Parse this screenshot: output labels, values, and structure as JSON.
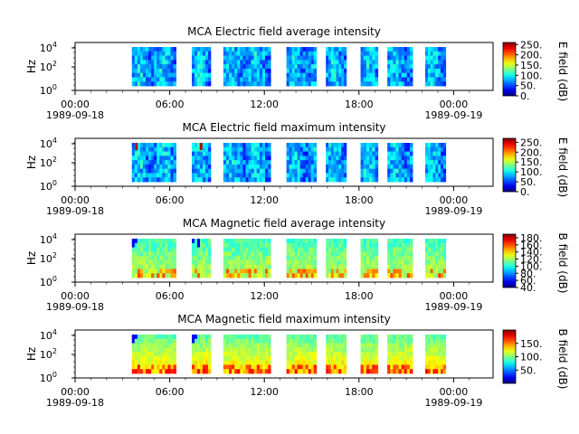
{
  "chart_data": [
    {
      "type": "heatmap",
      "title": "MCA  Electric field average intensity",
      "ylabel": "Hz",
      "yscale": "log",
      "yticks": [
        "10^0",
        "10^2",
        "10^4"
      ],
      "xticks": [
        "00:00",
        "06:00",
        "12:00",
        "18:00",
        "00:00"
      ],
      "xdates": [
        "1989-09-18",
        "1989-09-19"
      ],
      "colorbar_label": "E field (dB)",
      "colorbar_ticks": [
        "0.",
        "50.",
        "100.",
        "150.",
        "200.",
        "250."
      ],
      "colorbar_range": [
        0,
        260
      ],
      "colormap": "blue-to-red",
      "data_segments_hours": [
        [
          3.6,
          6.4
        ],
        [
          7.4,
          8.6
        ],
        [
          9.4,
          12.4
        ],
        [
          13.4,
          15.3
        ],
        [
          15.9,
          17.2
        ],
        [
          18.1,
          19.2
        ],
        [
          19.8,
          21.4
        ],
        [
          22.2,
          23.5
        ]
      ],
      "intensity_character": "low",
      "hotspots_hours": []
    },
    {
      "type": "heatmap",
      "title": "MCA  Electric field maximum intensity",
      "ylabel": "Hz",
      "yscale": "log",
      "yticks": [
        "10^0",
        "10^2",
        "10^4"
      ],
      "xticks": [
        "00:00",
        "06:00",
        "12:00",
        "18:00",
        "00:00"
      ],
      "xdates": [
        "1989-09-18",
        "1989-09-19"
      ],
      "colorbar_label": "E field (dB)",
      "colorbar_ticks": [
        "0.",
        "50.",
        "100.",
        "150.",
        "200.",
        "250."
      ],
      "colorbar_range": [
        0,
        270
      ],
      "colormap": "blue-to-red",
      "data_segments_hours": [
        [
          3.6,
          6.4
        ],
        [
          7.4,
          8.6
        ],
        [
          9.4,
          12.4
        ],
        [
          13.4,
          15.3
        ],
        [
          15.9,
          17.2
        ],
        [
          18.1,
          19.2
        ],
        [
          19.8,
          21.4
        ],
        [
          22.2,
          23.5
        ]
      ],
      "intensity_character": "low",
      "hotspots_hours": [
        3.8,
        7.9
      ]
    },
    {
      "type": "heatmap",
      "title": "MCA  Magnetic field average intensity",
      "ylabel": "Hz",
      "yscale": "log",
      "yticks": [
        "10^0",
        "10^2",
        "10^4"
      ],
      "xticks": [
        "00:00",
        "06:00",
        "12:00",
        "18:00",
        "00:00"
      ],
      "xdates": [
        "1989-09-18",
        "1989-09-19"
      ],
      "colorbar_label": "B field (dB)",
      "colorbar_ticks": [
        "40.",
        "60.",
        "80.",
        "100.",
        "120.",
        "140.",
        "160.",
        "180."
      ],
      "colorbar_range": [
        40,
        190
      ],
      "colormap": "blue-to-red",
      "data_segments_hours": [
        [
          3.6,
          6.4
        ],
        [
          7.4,
          8.6
        ],
        [
          9.4,
          12.4
        ],
        [
          13.4,
          15.3
        ],
        [
          15.9,
          17.2
        ],
        [
          18.1,
          19.2
        ],
        [
          19.8,
          21.4
        ],
        [
          22.2,
          23.5
        ]
      ],
      "intensity_character": "medium",
      "hotspots_hours": []
    },
    {
      "type": "heatmap",
      "title": "MCA  Magnetic field maximum intensity",
      "ylabel": "Hz",
      "yscale": "log",
      "yticks": [
        "10^0",
        "10^2",
        "10^4"
      ],
      "xticks": [
        "00:00",
        "06:00",
        "12:00",
        "18:00",
        "00:00"
      ],
      "xdates": [
        "1989-09-18",
        "1989-09-19"
      ],
      "colorbar_label": "B field (dB)",
      "colorbar_ticks": [
        "50.",
        "100.",
        "150."
      ],
      "colorbar_range": [
        0,
        200
      ],
      "colormap": "blue-to-red",
      "data_segments_hours": [
        [
          3.6,
          6.4
        ],
        [
          7.4,
          8.6
        ],
        [
          9.4,
          12.4
        ],
        [
          13.4,
          15.3
        ],
        [
          15.9,
          17.2
        ],
        [
          18.1,
          19.2
        ],
        [
          19.8,
          21.4
        ],
        [
          22.2,
          23.5
        ]
      ],
      "intensity_character": "high",
      "hotspots_hours": []
    }
  ]
}
